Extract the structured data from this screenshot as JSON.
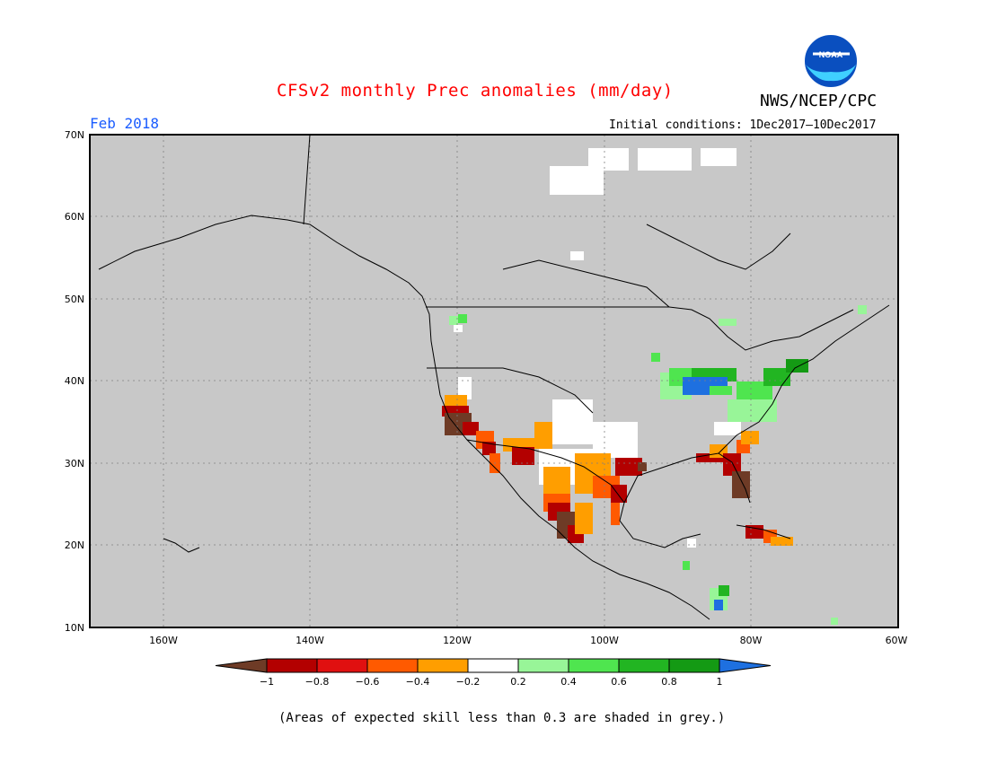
{
  "header": {
    "title": "CFSv2 monthly Prec anomalies (mm/day)",
    "agency": "NWS/NCEP/CPC",
    "month": "Feb 2018",
    "initial_conditions": "Initial conditions: 1Dec2017–10Dec2017"
  },
  "map": {
    "lat_labels": [
      "70N",
      "60N",
      "50N",
      "40N",
      "30N",
      "20N",
      "10N"
    ],
    "lon_labels": [
      "160W",
      "140W",
      "120W",
      "100W",
      "80W",
      "60W"
    ],
    "background_color": "#c8c8c8"
  },
  "colorbar": {
    "tick_labels": [
      "−1",
      "−0.8",
      "−0.6",
      "−0.4",
      "−0.2",
      "0.2",
      "0.4",
      "0.6",
      "0.8",
      "1"
    ],
    "colors": [
      "#6e3b26",
      "#b30000",
      "#e01010",
      "#ff5a00",
      "#ff9e00",
      "#ffffff",
      "#98f598",
      "#4fe54f",
      "#22b522",
      "#149a14",
      "#1e70e0"
    ]
  },
  "footnote": "(Areas of expected skill less than 0.3 are shaded in grey.)",
  "logo": {
    "text": "NOAA"
  }
}
